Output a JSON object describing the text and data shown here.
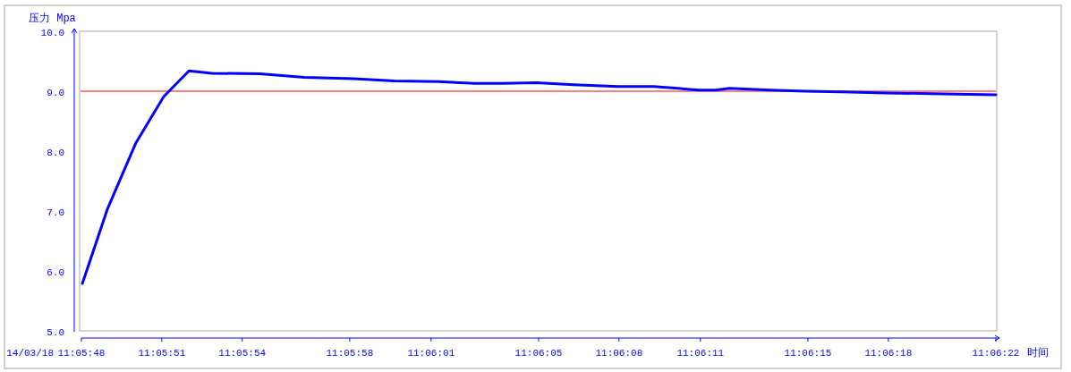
{
  "chart_data": {
    "type": "line",
    "ylabel": "压力 Mpa",
    "xlabel": "时间",
    "annotations": [
      "14/03/18"
    ],
    "x": [
      11.09668,
      11.09694,
      11.09723,
      11.09752,
      11.09778,
      11.09802,
      11.09851,
      11.09897,
      11.09948,
      11.0999,
      11.10036,
      11.10073,
      11.101,
      11.10137,
      11.10175,
      11.10221,
      11.10258,
      11.10304,
      11.10322,
      11.10336,
      11.10378,
      11.10415,
      11.10452,
      11.10498,
      11.10544,
      11.10611
    ],
    "series": [
      {
        "color": "#0000ff",
        "values": [
          5.79,
          7.04,
          8.13,
          8.91,
          9.34,
          9.3,
          9.29,
          9.23,
          9.21,
          9.17,
          9.16,
          9.13,
          9.13,
          9.14,
          9.11,
          9.08,
          9.08,
          9.02,
          9.02,
          9.05,
          9.02,
          9.0,
          8.99,
          8.97,
          8.96,
          8.94
        ]
      }
    ],
    "xlim": [
      11.09667,
      11.10611
    ],
    "xticks": [
      {
        "value": 11.09667,
        "label": "11:05:48"
      },
      {
        "value": 11.0975,
        "label": "11:05:51"
      },
      {
        "value": 11.09833,
        "label": "11:05:54"
      },
      {
        "value": 11.09944,
        "label": "11:05:58"
      },
      {
        "value": 11.10028,
        "label": "11:06:01"
      },
      {
        "value": 11.10139,
        "label": "11:06:05"
      },
      {
        "value": 11.10222,
        "label": "11:06:08"
      },
      {
        "value": 11.10306,
        "label": "11:06:11"
      },
      {
        "value": 11.10417,
        "label": "11:06:15"
      },
      {
        "value": 11.105,
        "label": "11:06:18"
      },
      {
        "value": 11.10611,
        "label": "11:06:22"
      }
    ],
    "ylim": [
      5,
      10
    ],
    "yticks": [
      {
        "value": 5,
        "label": "5.0"
      },
      {
        "value": 6,
        "label": "6.0"
      },
      {
        "value": 7,
        "label": "7.0"
      },
      {
        "value": 8,
        "label": "8.0"
      },
      {
        "value": 9,
        "label": "9.0"
      },
      {
        "value": 10,
        "label": "10.0"
      }
    ],
    "ref_lines": [
      {
        "axis": "y",
        "value": 9,
        "color": "#ff0000"
      }
    ],
    "grid": false,
    "marker": "none",
    "line_style": "solid"
  }
}
